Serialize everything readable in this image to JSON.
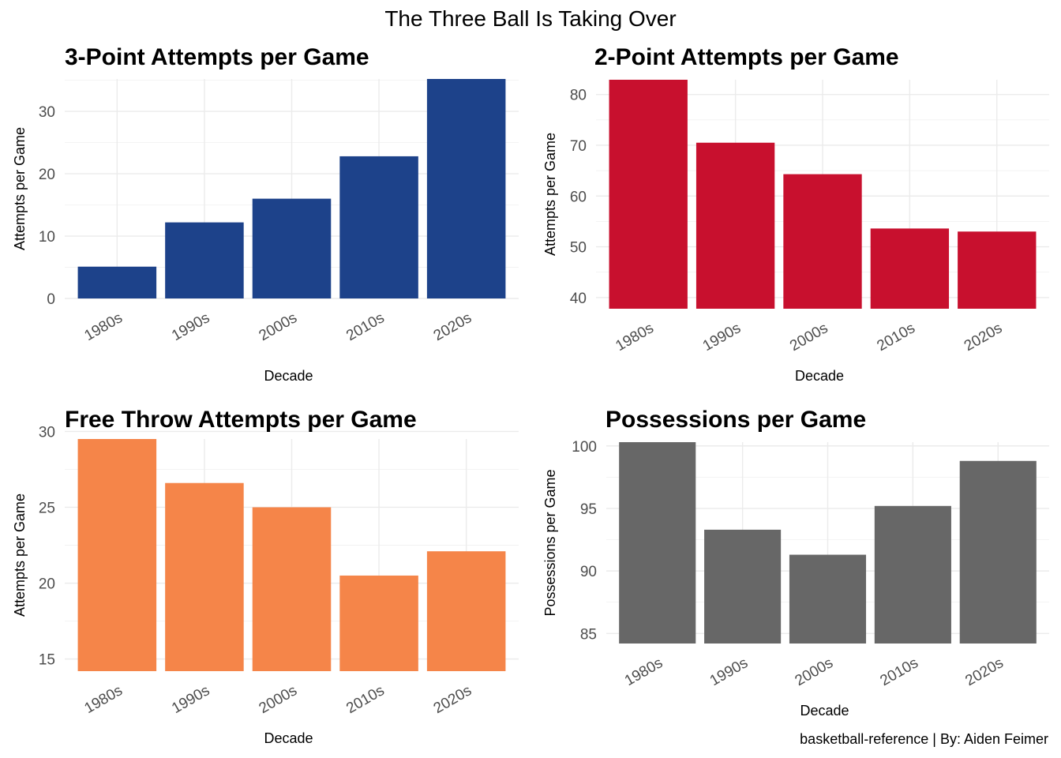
{
  "figure": {
    "title": "The Three Ball Is Taking Over",
    "caption": "basketball-reference  |  By: Aiden Feimer"
  },
  "chart_data": [
    {
      "type": "bar",
      "title": "3-Point Attempts per Game",
      "xlabel": "Decade",
      "ylabel": "Attempts per Game",
      "categories": [
        "1980s",
        "1990s",
        "2000s",
        "2010s",
        "2020s"
      ],
      "values": [
        5.1,
        12.2,
        16.0,
        22.8,
        35.2
      ],
      "ylim": [
        0,
        35.2
      ],
      "yticks": [
        0,
        10,
        20,
        30
      ],
      "color": "#1d428a",
      "grid": true
    },
    {
      "type": "bar",
      "title": "2-Point Attempts per Game",
      "xlabel": "Decade",
      "ylabel": "Attempts per Game",
      "categories": [
        "1980s",
        "1990s",
        "2000s",
        "2010s",
        "2020s"
      ],
      "values": [
        82.9,
        70.5,
        64.3,
        53.6,
        53.0
      ],
      "ylim": [
        37.8,
        82.9
      ],
      "yticks": [
        40,
        50,
        60,
        70,
        80
      ],
      "color": "#c8102e",
      "grid": true
    },
    {
      "type": "bar",
      "title": "Free Throw Attempts per Game",
      "xlabel": "Decade",
      "ylabel": "Attempts per Game",
      "categories": [
        "1980s",
        "1990s",
        "2000s",
        "2010s",
        "2020s"
      ],
      "values": [
        29.5,
        26.6,
        25.0,
        20.5,
        22.1
      ],
      "ylim": [
        14.2,
        29.5
      ],
      "yticks": [
        15,
        20,
        25,
        30
      ],
      "color": "#f58549",
      "grid": true
    },
    {
      "type": "bar",
      "title": "Possessions per Game",
      "xlabel": "Decade",
      "ylabel": "Possessions per Game",
      "categories": [
        "1980s",
        "1990s",
        "2000s",
        "2010s",
        "2020s"
      ],
      "values": [
        100.3,
        93.3,
        91.3,
        95.2,
        98.8
      ],
      "ylim": [
        84.2,
        100.3
      ],
      "yticks": [
        85,
        90,
        95,
        100
      ],
      "color": "#676767",
      "grid": true
    }
  ]
}
